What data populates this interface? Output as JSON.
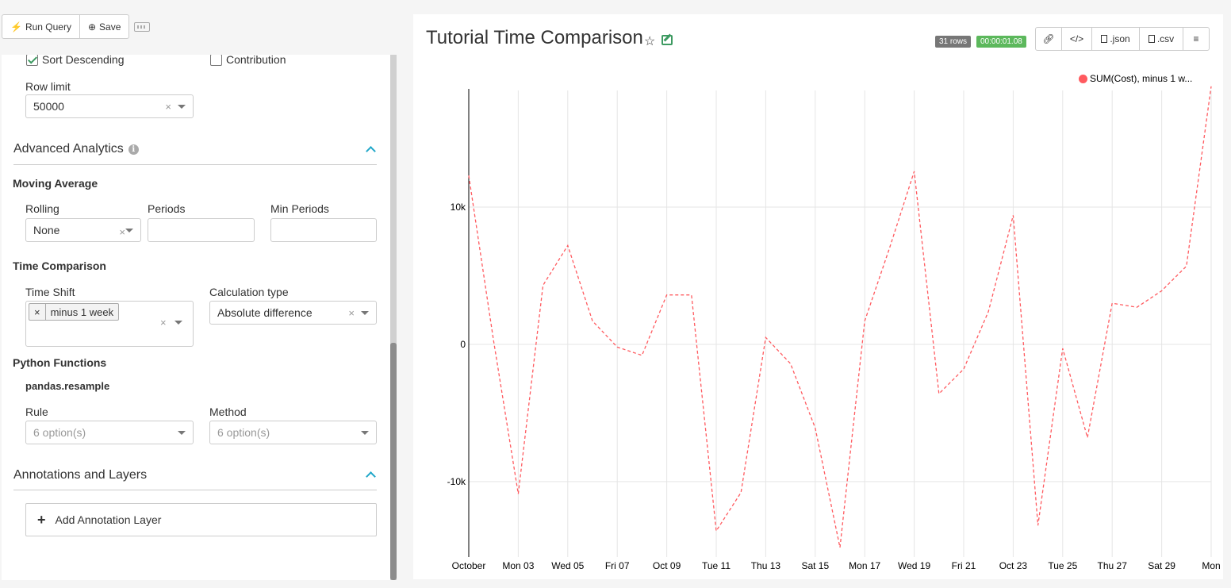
{
  "toolbar": {
    "run_label": "Run Query",
    "save_label": "Save"
  },
  "options": {
    "sort_descending": {
      "label": "Sort Descending",
      "checked": true
    },
    "contribution": {
      "label": "Contribution",
      "checked": false
    },
    "row_limit": {
      "label": "Row limit",
      "value": "50000"
    }
  },
  "advanced": {
    "title": "Advanced Analytics",
    "moving_average": {
      "title": "Moving Average",
      "rolling_label": "Rolling",
      "rolling_value": "None",
      "periods_label": "Periods",
      "min_periods_label": "Min Periods"
    },
    "time_comparison": {
      "title": "Time Comparison",
      "time_shift_label": "Time Shift",
      "time_shift_tag": "minus 1 week",
      "calc_label": "Calculation type",
      "calc_value": "Absolute difference"
    },
    "python": {
      "title": "Python Functions",
      "subtitle": "pandas.resample",
      "rule_label": "Rule",
      "rule_placeholder": "6 option(s)",
      "method_label": "Method",
      "method_placeholder": "6 option(s)"
    }
  },
  "annotations": {
    "title": "Annotations and Layers",
    "add_label": "Add Annotation Layer"
  },
  "chart_panel": {
    "title": "Tutorial Time Comparison",
    "rows_badge": "31 rows",
    "timer_badge": "00:00:01.08",
    "json_label": ".json",
    "csv_label": ".csv",
    "rows_color": "#777777",
    "timer_color": "#5cb85c"
  },
  "chart_data": {
    "type": "line",
    "ylabel": "",
    "xlabel": "",
    "ylim": [
      -15500,
      18500
    ],
    "yticks": [
      -10000,
      0,
      10000
    ],
    "ytick_labels": [
      "-10k",
      "0",
      "10k"
    ],
    "grid": true,
    "legend_position": "top-right",
    "x_labels": [
      "October",
      "Mon 03",
      "Wed 05",
      "Fri 07",
      "Oct 09",
      "Tue 11",
      "Thu 13",
      "Sat 15",
      "Mon 17",
      "Wed 19",
      "Fri 21",
      "Oct 23",
      "Tue 25",
      "Thu 27",
      "Sat 29",
      "Mon"
    ],
    "series": [
      {
        "name": "SUM(Cost), minus 1 w...",
        "color": "#ff5a5f",
        "line_style": "dashed",
        "values": [
          12300,
          300,
          -10900,
          4300,
          7200,
          1700,
          -200,
          -800,
          3600,
          3600,
          -13600,
          -10800,
          500,
          -1400,
          -6100,
          -14800,
          1700,
          7000,
          12600,
          -3600,
          -1800,
          2400,
          9400,
          -13200,
          -300,
          -6800,
          3000,
          2700,
          3900,
          5700,
          18800
        ]
      }
    ]
  }
}
